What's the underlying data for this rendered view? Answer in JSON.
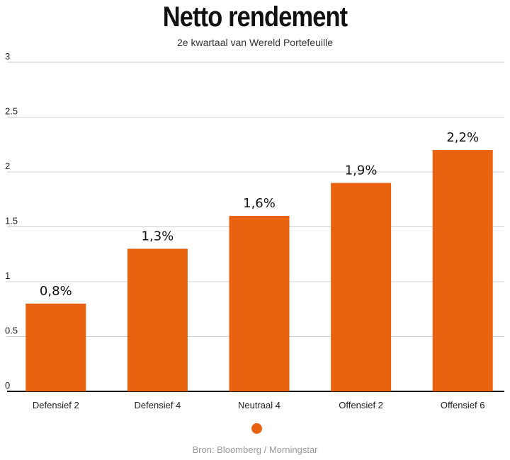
{
  "chart_data": {
    "type": "bar",
    "title": "Netto rendement",
    "subtitle": "2e kwartaal van Wereld Portefeuille",
    "categories": [
      "Defensief 2",
      "Defensief 4",
      "Neutraal 4",
      "Offensief 2",
      "Offensief 6"
    ],
    "values": [
      0.8,
      1.3,
      1.6,
      1.9,
      2.2
    ],
    "data_labels": [
      "0,8%",
      "1,3%",
      "1,6%",
      "1,9%",
      "2,2%"
    ],
    "ylim": [
      0,
      3
    ],
    "yticks": [
      0,
      0.5,
      1,
      1.5,
      2,
      2.5,
      3
    ],
    "ytick_labels": [
      "0",
      "0.5",
      "1",
      "1.5",
      "2",
      "2.5",
      "3"
    ],
    "xlabel": "",
    "ylabel": "",
    "grid": true,
    "legend": {
      "placement": "bottom-center",
      "entries": [
        {
          "name": "",
          "color": "#e8620f"
        }
      ]
    },
    "bar_color": "#e8620f",
    "source": "Bron: Bloomberg / Morningstar"
  }
}
